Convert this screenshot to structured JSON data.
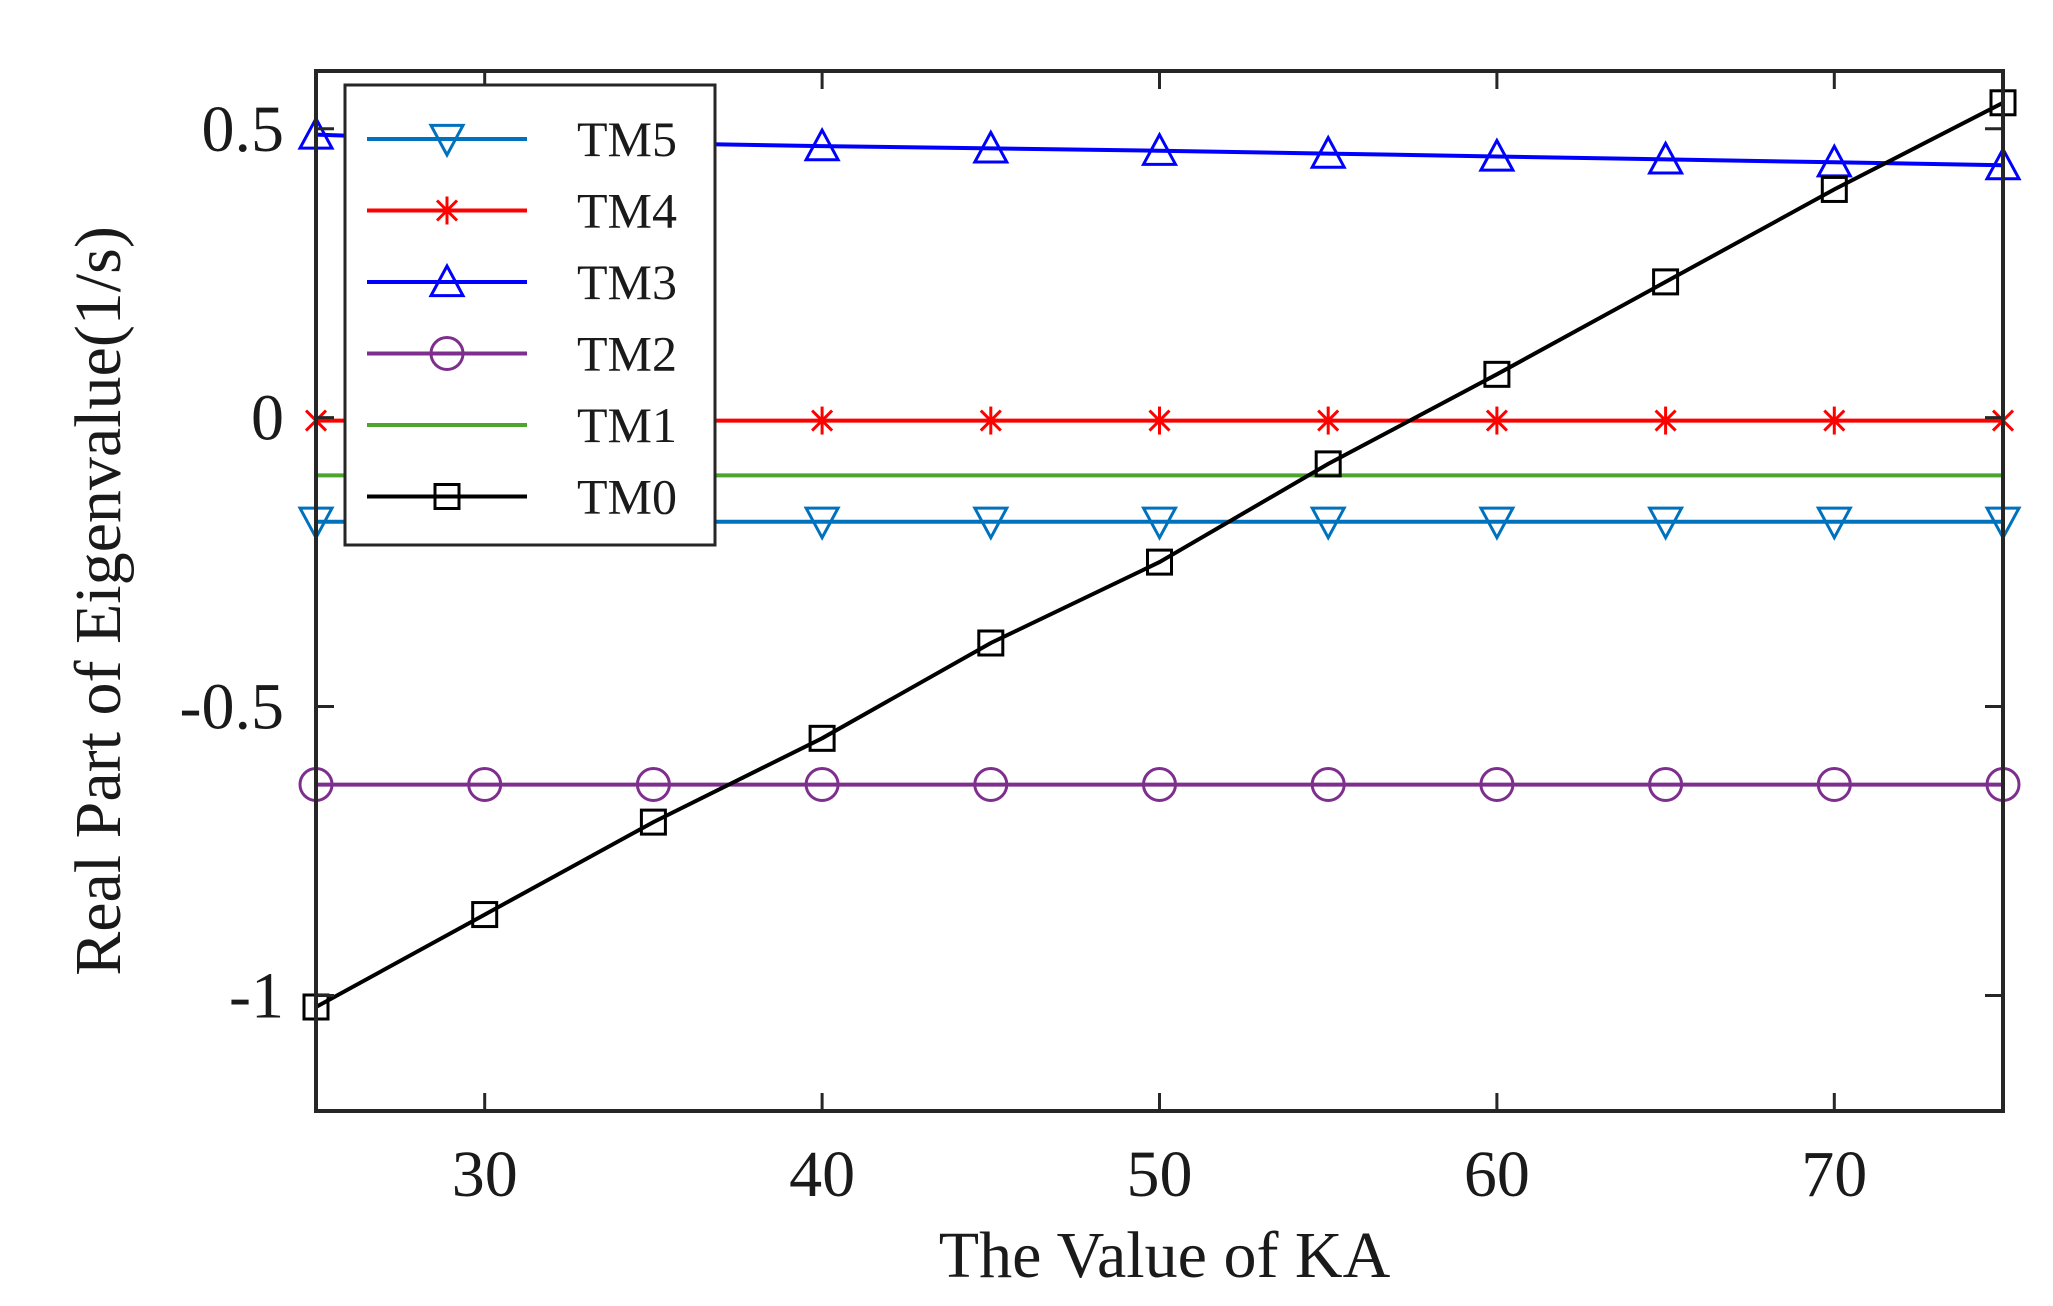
{
  "chart_data": {
    "type": "line",
    "title": "",
    "xlabel": "The Value of KA",
    "ylabel": "Real Part of Eigenvalue(1/s)",
    "xlim": [
      25,
      75
    ],
    "ylim": [
      -1.2,
      0.6
    ],
    "xticks": [
      30,
      40,
      50,
      60,
      70
    ],
    "yticks": [
      -1,
      -0.5,
      0,
      0.5
    ],
    "xtick_labels": [
      "30",
      "40",
      "50",
      "60",
      "70"
    ],
    "ytick_labels": [
      "-1",
      "-0.5",
      "0",
      "0.5"
    ],
    "grid": false,
    "legend_position": "top-left",
    "x": [
      25,
      30,
      35,
      40,
      45,
      50,
      55,
      60,
      65,
      70,
      75
    ],
    "series": [
      {
        "name": "TM5",
        "color": "#0072BD",
        "marker": "triangle-down",
        "values": [
          -0.18,
          -0.18,
          -0.18,
          -0.18,
          -0.18,
          -0.18,
          -0.18,
          -0.18,
          -0.18,
          -0.18,
          -0.18
        ]
      },
      {
        "name": "TM4",
        "color": "#FF0000",
        "marker": "asterisk",
        "values": [
          -0.005,
          -0.005,
          -0.005,
          -0.005,
          -0.005,
          -0.005,
          -0.005,
          -0.005,
          -0.005,
          -0.005,
          -0.005
        ]
      },
      {
        "name": "TM3",
        "color": "#0000FF",
        "marker": "triangle-up",
        "values": [
          0.49,
          0.48,
          0.475,
          0.47,
          0.466,
          0.462,
          0.457,
          0.452,
          0.447,
          0.442,
          0.437
        ]
      },
      {
        "name": "TM2",
        "color": "#7E2F8E",
        "marker": "circle",
        "values": [
          -0.635,
          -0.635,
          -0.635,
          -0.635,
          -0.635,
          -0.635,
          -0.635,
          -0.635,
          -0.635,
          -0.635,
          -0.635
        ]
      },
      {
        "name": "TM1",
        "color": "#4CA62C",
        "marker": "none",
        "values": [
          -0.1,
          -0.1,
          -0.1,
          -0.1,
          -0.1,
          -0.1,
          -0.1,
          -0.1,
          -0.1,
          -0.1,
          -0.1
        ]
      },
      {
        "name": "TM0",
        "color": "#000000",
        "marker": "square",
        "values": [
          -1.02,
          -0.86,
          -0.7,
          -0.555,
          -0.39,
          -0.25,
          -0.08,
          0.075,
          0.235,
          0.395,
          0.545
        ]
      }
    ]
  }
}
